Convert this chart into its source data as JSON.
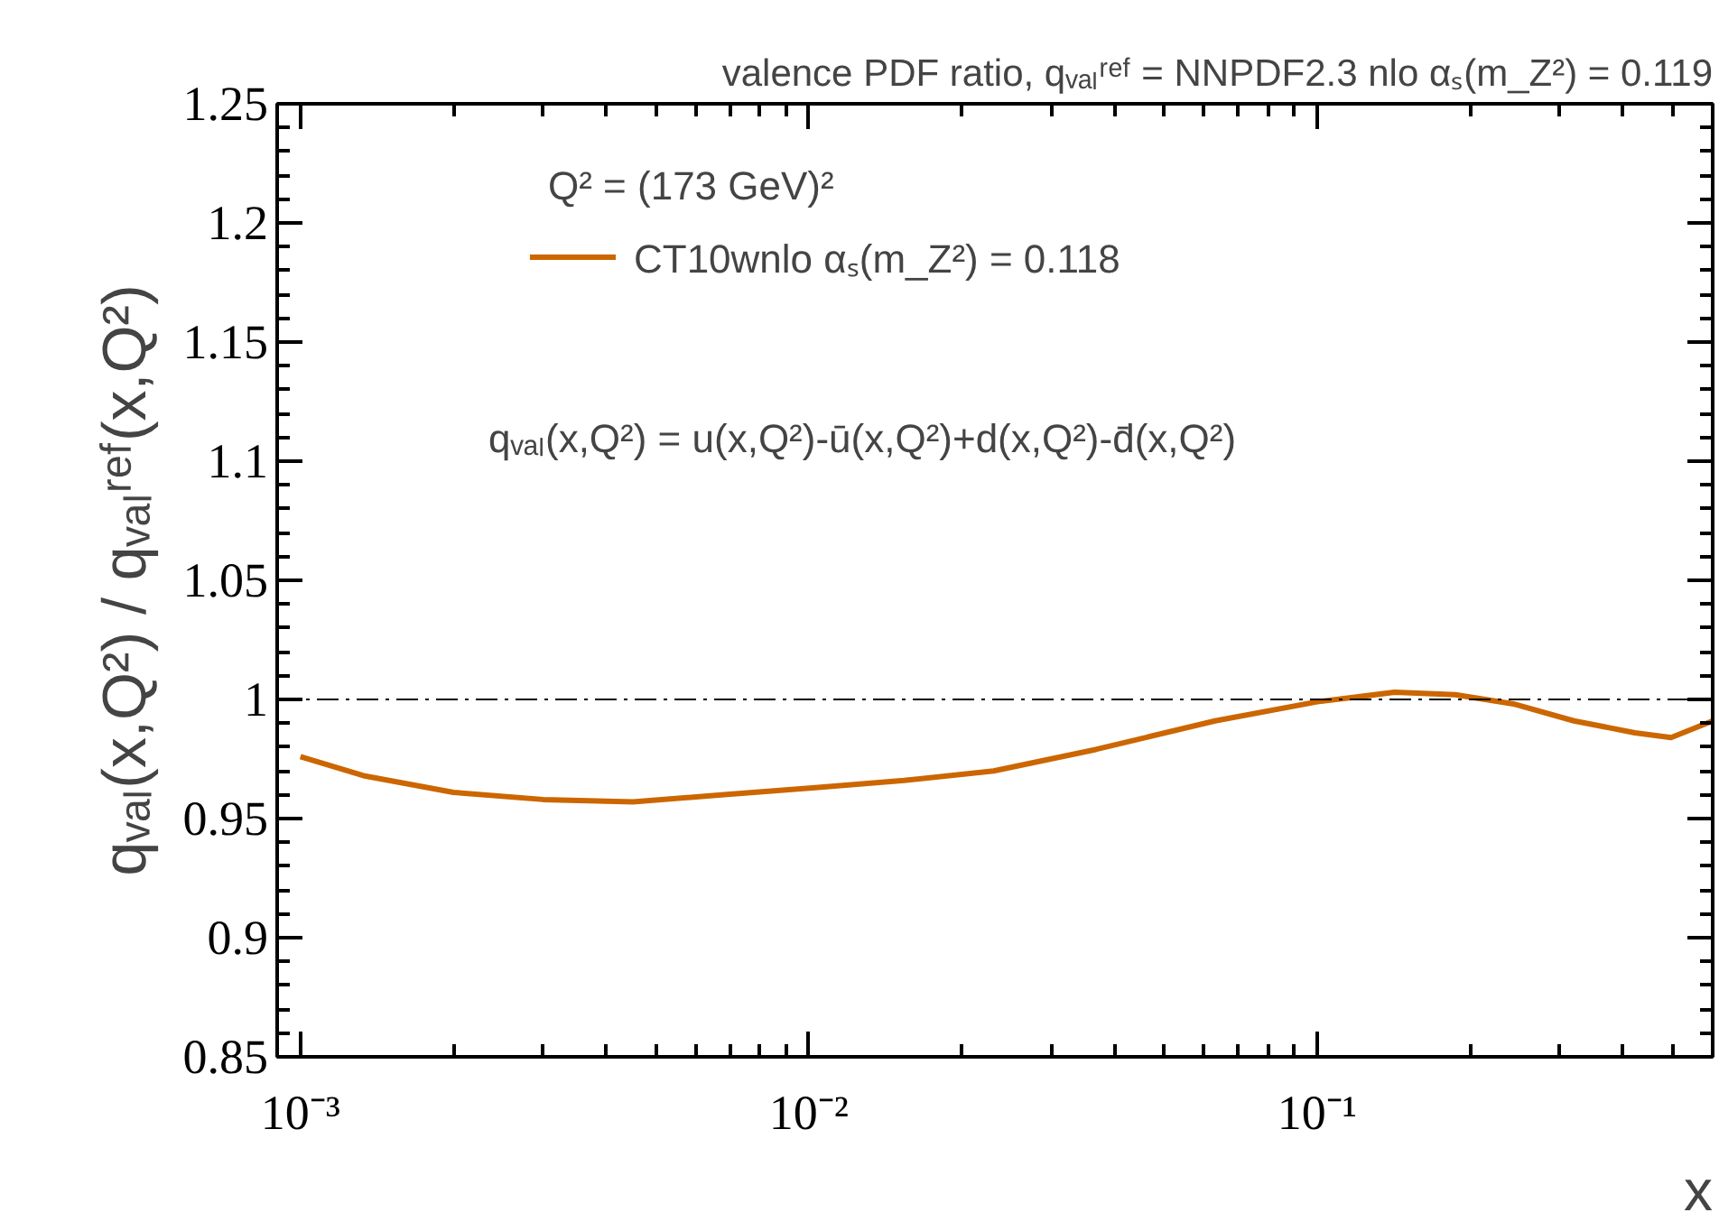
{
  "chart_data": {
    "type": "line",
    "title": "valence PDF ratio, qᵥₐₗʳᵉᶠ = NNPDF2.3 nlo αₛ(m_Z²) = 0.119",
    "xlabel": "x",
    "ylabel": "qᵥₐₗ(x,Q²) / qᵥₐₗʳᵉᶠ(x,Q²)",
    "annotations": [
      "Q² = (173 GeV)²",
      "qᵥₐₗ(x,Q²) = u(x,Q²)-ū(x,Q²)+d(x,Q²)-d̄(x,Q²)"
    ],
    "log": "x",
    "xlim": [
      0.0009,
      0.6
    ],
    "xticks": [
      {
        "value": 0.001,
        "label": "10⁻³"
      },
      {
        "value": 0.01,
        "label": "10⁻²"
      },
      {
        "value": 0.1,
        "label": "10⁻¹"
      }
    ],
    "ylim": [
      0.85,
      1.25
    ],
    "yticks": [
      0.85,
      0.9,
      0.95,
      1,
      1.05,
      1.1,
      1.15,
      1.2,
      1.25
    ],
    "grid": false,
    "legend": "top",
    "ref_lines": [
      {
        "axis": "y",
        "value": 1,
        "line_style": "dashdot",
        "color": "#000000"
      }
    ],
    "series": [
      {
        "name": "CT10wnlo αₛ(m_Z²) = 0.118",
        "color": "#cc6600",
        "line_style": "solid",
        "x": [
          0.001,
          0.00133,
          0.002,
          0.003,
          0.00451,
          0.00682,
          0.0103,
          0.0154,
          0.0231,
          0.0367,
          0.063,
          0.1,
          0.142,
          0.187,
          0.245,
          0.32,
          0.422,
          0.497,
          0.6
        ],
        "values": [
          0.976,
          0.968,
          0.961,
          0.958,
          0.957,
          0.96,
          0.963,
          0.966,
          0.97,
          0.979,
          0.991,
          0.999,
          1.003,
          1.002,
          0.998,
          0.991,
          0.986,
          0.984,
          0.991
        ]
      }
    ]
  }
}
